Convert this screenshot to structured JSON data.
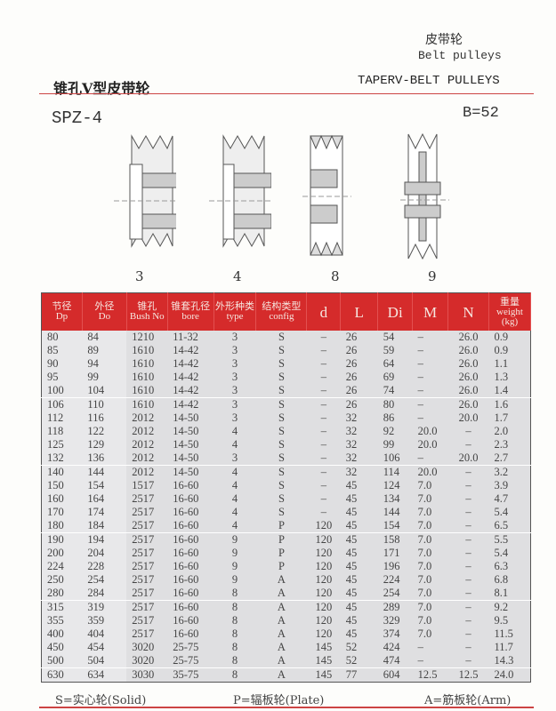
{
  "header": {
    "title_cn": "皮带轮",
    "title_en": "Belt pulleys",
    "subtitle_cn": "锥孔V型皮带轮",
    "subtitle_en": "TAPERV-BELT PULLEYS"
  },
  "model": "SPZ-4",
  "b_value": "B=52",
  "figures": [
    {
      "label": "3"
    },
    {
      "label": "4"
    },
    {
      "label": "8"
    },
    {
      "label": "9"
    }
  ],
  "colors": {
    "header_red": "#d52b2b",
    "row_gray": "#dfdfe1"
  },
  "table": {
    "headers": [
      {
        "cn": "节径",
        "en": "Dp"
      },
      {
        "cn": "外径",
        "en": "Do"
      },
      {
        "cn": "锥孔",
        "en": "Bush No"
      },
      {
        "cn": "锥套孔径",
        "en": "bore"
      },
      {
        "cn": "外形种类",
        "en": "type"
      },
      {
        "cn": "结构类型",
        "en": "config"
      },
      {
        "cn": "",
        "en": "d"
      },
      {
        "cn": "",
        "en": "L"
      },
      {
        "cn": "",
        "en": "Di"
      },
      {
        "cn": "",
        "en": "M"
      },
      {
        "cn": "",
        "en": "N"
      },
      {
        "cn": "重量",
        "en": "weight (kg)"
      }
    ],
    "rows": [
      [
        "80",
        "84",
        "1210",
        "11-32",
        "3",
        "S",
        "–",
        "26",
        "54",
        "–",
        "26.0",
        "0.9"
      ],
      [
        "85",
        "89",
        "1610",
        "14-42",
        "3",
        "S",
        "–",
        "26",
        "59",
        "–",
        "26.0",
        "0.9"
      ],
      [
        "90",
        "94",
        "1610",
        "14-42",
        "3",
        "S",
        "–",
        "26",
        "64",
        "–",
        "26.0",
        "1.1"
      ],
      [
        "95",
        "99",
        "1610",
        "14-42",
        "3",
        "S",
        "–",
        "26",
        "69",
        "–",
        "26.0",
        "1.3"
      ],
      [
        "100",
        "104",
        "1610",
        "14-42",
        "3",
        "S",
        "–",
        "26",
        "74",
        "–",
        "26.0",
        "1.4"
      ],
      [
        "106",
        "110",
        "1610",
        "14-42",
        "3",
        "S",
        "–",
        "26",
        "80",
        "–",
        "26.0",
        "1.6"
      ],
      [
        "112",
        "116",
        "2012",
        "14-50",
        "3",
        "S",
        "–",
        "32",
        "86",
        "–",
        "20.0",
        "1.7"
      ],
      [
        "118",
        "122",
        "2012",
        "14-50",
        "4",
        "S",
        "–",
        "32",
        "92",
        "20.0",
        "–",
        "2.0"
      ],
      [
        "125",
        "129",
        "2012",
        "14-50",
        "4",
        "S",
        "–",
        "32",
        "99",
        "20.0",
        "–",
        "2.3"
      ],
      [
        "132",
        "136",
        "2012",
        "14-50",
        "3",
        "S",
        "–",
        "32",
        "106",
        "–",
        "20.0",
        "2.7"
      ],
      [
        "140",
        "144",
        "2012",
        "14-50",
        "4",
        "S",
        "–",
        "32",
        "114",
        "20.0",
        "–",
        "3.2"
      ],
      [
        "150",
        "154",
        "1517",
        "16-60",
        "4",
        "S",
        "–",
        "45",
        "124",
        "7.0",
        "–",
        "3.9"
      ],
      [
        "160",
        "164",
        "2517",
        "16-60",
        "4",
        "S",
        "–",
        "45",
        "134",
        "7.0",
        "–",
        "4.7"
      ],
      [
        "170",
        "174",
        "2517",
        "16-60",
        "4",
        "S",
        "–",
        "45",
        "144",
        "7.0",
        "–",
        "5.4"
      ],
      [
        "180",
        "184",
        "2517",
        "16-60",
        "4",
        "P",
        "120",
        "45",
        "154",
        "7.0",
        "–",
        "6.5"
      ],
      [
        "190",
        "194",
        "2517",
        "16-60",
        "9",
        "P",
        "120",
        "45",
        "158",
        "7.0",
        "–",
        "5.5"
      ],
      [
        "200",
        "204",
        "2517",
        "16-60",
        "9",
        "P",
        "120",
        "45",
        "171",
        "7.0",
        "–",
        "5.4"
      ],
      [
        "224",
        "228",
        "2517",
        "16-60",
        "9",
        "P",
        "120",
        "45",
        "196",
        "7.0",
        "–",
        "6.3"
      ],
      [
        "250",
        "254",
        "2517",
        "16-60",
        "9",
        "A",
        "120",
        "45",
        "224",
        "7.0",
        "–",
        "6.8"
      ],
      [
        "280",
        "284",
        "2517",
        "16-60",
        "8",
        "A",
        "120",
        "45",
        "254",
        "7.0",
        "–",
        "8.1"
      ],
      [
        "315",
        "319",
        "2517",
        "16-60",
        "8",
        "A",
        "120",
        "45",
        "289",
        "7.0",
        "–",
        "9.2"
      ],
      [
        "355",
        "359",
        "2517",
        "16-60",
        "8",
        "A",
        "120",
        "45",
        "329",
        "7.0",
        "–",
        "9.5"
      ],
      [
        "400",
        "404",
        "2517",
        "16-60",
        "8",
        "A",
        "120",
        "45",
        "374",
        "7.0",
        "–",
        "11.5"
      ],
      [
        "450",
        "454",
        "3020",
        "25-75",
        "8",
        "A",
        "145",
        "52",
        "424",
        "–",
        "–",
        "11.7"
      ],
      [
        "500",
        "504",
        "3020",
        "25-75",
        "8",
        "A",
        "145",
        "52",
        "474",
        "–",
        "–",
        "14.3"
      ],
      [
        "630",
        "634",
        "3030",
        "35-75",
        "8",
        "A",
        "145",
        "77",
        "604",
        "12.5",
        "12.5",
        "24.0"
      ]
    ]
  },
  "legend": {
    "solid": "S=实心轮(Solid)",
    "plate": "P=辐板轮(Plate)",
    "arm": "A=筋板轮(Arm)"
  }
}
